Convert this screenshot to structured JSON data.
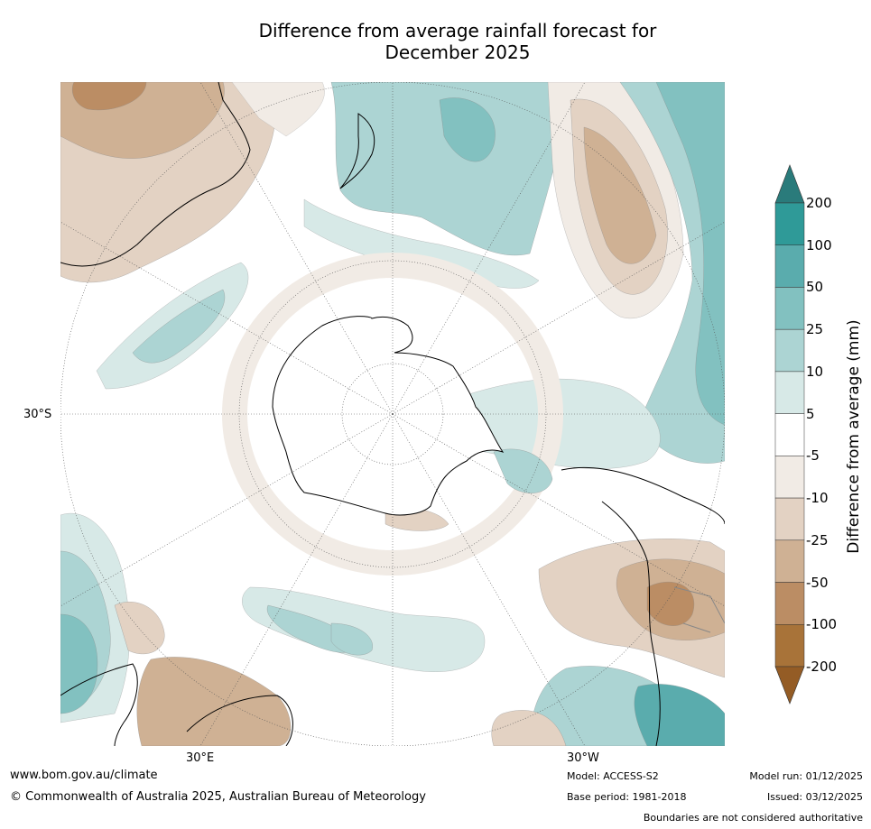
{
  "title": {
    "line1": "Difference from average rainfall forecast for",
    "line2": "December 2025"
  },
  "map": {
    "projection": "south-polar-stereographic",
    "lat_label": "30°S",
    "lon_labels": {
      "left": "30°E",
      "right": "30°W"
    }
  },
  "colorbar": {
    "label": "Difference from average (mm)",
    "ticks": [
      "200",
      "100",
      "50",
      "25",
      "10",
      "5",
      "-5",
      "-10",
      "-25",
      "-50",
      "-100",
      "-200"
    ],
    "colors": {
      "over": "#2a7b7b",
      "b200": "#2f9a98",
      "b100": "#5aacad",
      "b50": "#82c1c0",
      "b25": "#acd4d3",
      "b10": "#d7e9e7",
      "b5": "#ffffff",
      "bm5": "#f1ebe5",
      "bm10": "#e3d2c3",
      "bm25": "#cfb194",
      "bm50": "#bb8d64",
      "bm100": "#a87339",
      "under": "#945c25"
    }
  },
  "footer": {
    "website": "www.bom.gov.au/climate",
    "copyright": "© Commonwealth of Australia 2025, Australian Bureau of Meteorology",
    "model": "Model: ACCESS-S2",
    "base_period": "Base period: 1981-2018",
    "model_run": "Model run: 01/12/2025",
    "issued": "Issued: 03/12/2025",
    "disclaimer": "Boundaries are not considered authoritative"
  }
}
